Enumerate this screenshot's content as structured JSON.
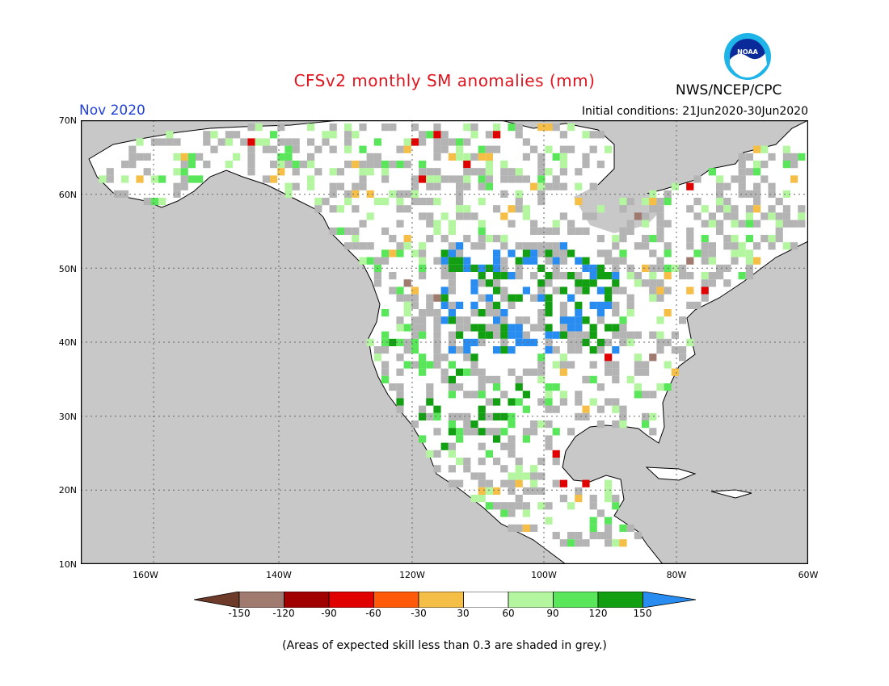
{
  "header": {
    "title": "CFSv2 monthly SM anomalies (mm)",
    "organization": "NWS/NCEP/CPC",
    "valid_month": "Nov 2020",
    "initial_conditions": "Initial conditions: 21Jun2020-30Jun2020",
    "logo_text": "NOAA"
  },
  "map": {
    "lat_labels": [
      "70N",
      "60N",
      "50N",
      "40N",
      "30N",
      "20N",
      "10N"
    ],
    "lon_labels": [
      "160W",
      "140W",
      "120W",
      "100W",
      "80W",
      "60W"
    ],
    "colors": {
      "ocean": "#c8c8c8",
      "land": "#ffffff",
      "skill_grey": "#b4b4b4",
      "coast": "#000000"
    }
  },
  "colorbar": {
    "labels": [
      "-150",
      "-120",
      "-90",
      "-60",
      "-30",
      "30",
      "60",
      "90",
      "120",
      "150"
    ],
    "colors": [
      "#6e3a2a",
      "#a07a6e",
      "#a00000",
      "#e00000",
      "#ff5a0a",
      "#f5be46",
      "#ffffff",
      "#b4f5a0",
      "#5ae65a",
      "#12a012",
      "#288cf0"
    ]
  },
  "footer": {
    "note": "(Areas of expected skill less than 0.3 are shaded in grey.)"
  }
}
